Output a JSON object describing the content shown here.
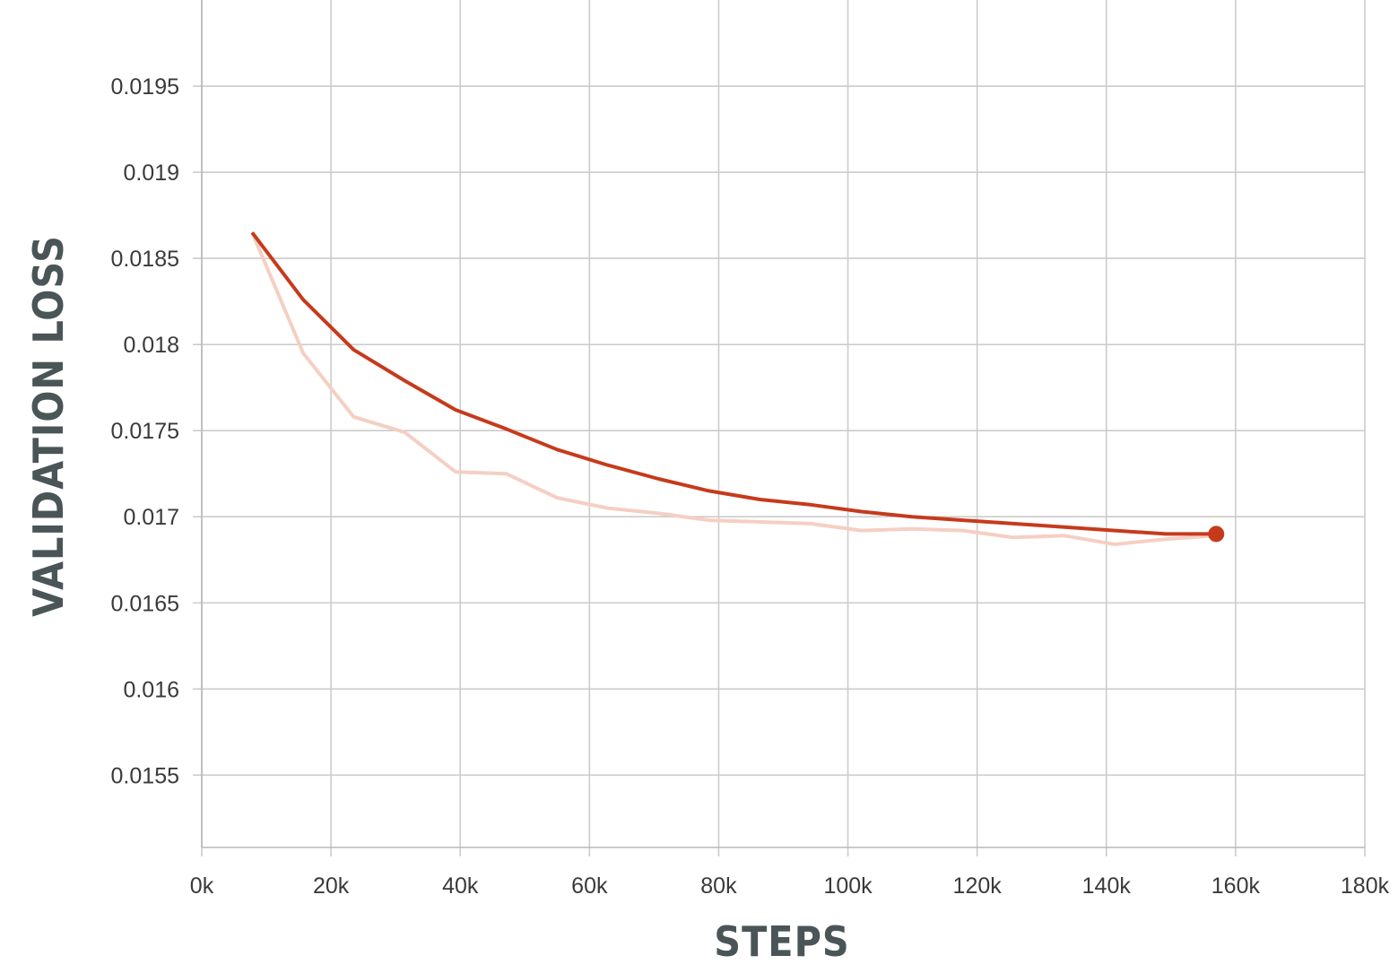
{
  "chart_data": {
    "type": "line",
    "xlabel": "STEPS",
    "ylabel": "VALIDATION LOSS",
    "xlim": [
      0,
      180000
    ],
    "ylim": [
      0.01508,
      0.02
    ],
    "grid": true,
    "x_ticks": [
      {
        "value": 0,
        "label": "0k"
      },
      {
        "value": 20000,
        "label": "20k"
      },
      {
        "value": 40000,
        "label": "40k"
      },
      {
        "value": 60000,
        "label": "60k"
      },
      {
        "value": 80000,
        "label": "80k"
      },
      {
        "value": 100000,
        "label": "100k"
      },
      {
        "value": 120000,
        "label": "120k"
      },
      {
        "value": 140000,
        "label": "140k"
      },
      {
        "value": 160000,
        "label": "160k"
      },
      {
        "value": 180000,
        "label": "180k"
      }
    ],
    "y_ticks": [
      {
        "value": 0.0155,
        "label": "0.0155"
      },
      {
        "value": 0.016,
        "label": "0.016"
      },
      {
        "value": 0.0165,
        "label": "0.0165"
      },
      {
        "value": 0.017,
        "label": "0.017"
      },
      {
        "value": 0.0175,
        "label": "0.0175"
      },
      {
        "value": 0.018,
        "label": "0.018"
      },
      {
        "value": 0.0185,
        "label": "0.0185"
      },
      {
        "value": 0.019,
        "label": "0.019"
      },
      {
        "value": 0.0195,
        "label": "0.0195"
      }
    ],
    "series": [
      {
        "style": "raw",
        "color": "#f5cfc4",
        "x": [
          7800,
          15700,
          23500,
          31400,
          39300,
          47100,
          55000,
          62800,
          70700,
          78500,
          86400,
          94200,
          102100,
          109900,
          117800,
          125600,
          133500,
          141300,
          149200,
          157000
        ],
        "y": [
          0.01865,
          0.01795,
          0.01758,
          0.01749,
          0.01726,
          0.01725,
          0.01711,
          0.01705,
          0.01702,
          0.01698,
          0.01697,
          0.01696,
          0.01692,
          0.01693,
          0.01692,
          0.01688,
          0.01689,
          0.01684,
          0.01687,
          0.01689
        ]
      },
      {
        "style": "smoothed",
        "color": "#c63a1c",
        "x": [
          7800,
          15700,
          23500,
          31400,
          39300,
          47100,
          55000,
          62800,
          70700,
          78500,
          86400,
          94200,
          102100,
          109900,
          117800,
          125600,
          133500,
          141300,
          149200,
          157000
        ],
        "y": [
          0.01865,
          0.01826,
          0.01797,
          0.01779,
          0.01762,
          0.01751,
          0.01739,
          0.0173,
          0.01722,
          0.01715,
          0.0171,
          0.01707,
          0.01703,
          0.017,
          0.01698,
          0.01696,
          0.01694,
          0.01692,
          0.0169,
          0.0169
        ],
        "end_marker": true
      }
    ]
  }
}
